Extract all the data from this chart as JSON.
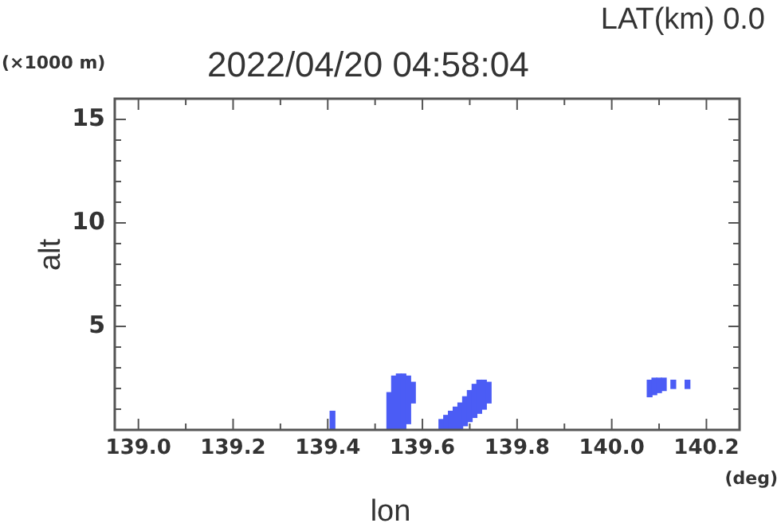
{
  "chart_data": {
    "type": "bar",
    "title": "2022/04/20 04:58:04",
    "subtitle": "LAT(km) 0.0",
    "xlabel": "lon",
    "ylabel": "alt",
    "annotations": [
      "(×1000 m)",
      "(deg)"
    ],
    "x": [
      139.41,
      139.53,
      139.54,
      139.55,
      139.56,
      139.57,
      139.58,
      139.64,
      139.65,
      139.66,
      139.67,
      139.68,
      139.69,
      139.7,
      139.71,
      139.72,
      139.73,
      139.74,
      140.08,
      140.09,
      140.1,
      140.11,
      140.13,
      140.16
    ],
    "base": [
      0,
      0,
      0,
      0,
      0,
      0.3,
      1.3,
      0,
      0,
      0,
      0,
      0,
      0.2,
      0.4,
      0.6,
      0.8,
      1.0,
      1.3,
      1.6,
      1.7,
      1.8,
      1.9,
      2.0,
      2.0
    ],
    "values": [
      0.9,
      1.8,
      2.6,
      2.7,
      2.7,
      2.3,
      1.0,
      0.5,
      0.7,
      0.9,
      1.1,
      1.3,
      1.4,
      1.5,
      1.6,
      1.6,
      1.4,
      1.0,
      0.8,
      0.8,
      0.7,
      0.6,
      0.4,
      0.4
    ],
    "color": "#4b5cf5",
    "xlim": [
      138.95,
      140.27
    ],
    "xticks": [
      {
        "value": 139.0,
        "label": "139.0"
      },
      {
        "value": 139.1,
        "label": null
      },
      {
        "value": 139.2,
        "label": "139.2"
      },
      {
        "value": 139.3,
        "label": null
      },
      {
        "value": 139.4,
        "label": "139.4"
      },
      {
        "value": 139.5,
        "label": null
      },
      {
        "value": 139.6,
        "label": "139.6"
      },
      {
        "value": 139.7,
        "label": null
      },
      {
        "value": 139.8,
        "label": "139.8"
      },
      {
        "value": 139.9,
        "label": null
      },
      {
        "value": 140.0,
        "label": "140.0"
      },
      {
        "value": 140.1,
        "label": null
      },
      {
        "value": 140.2,
        "label": "140.2"
      }
    ],
    "ylim": [
      0,
      16
    ],
    "yticks": [
      {
        "value": 1,
        "label": null
      },
      {
        "value": 2,
        "label": null
      },
      {
        "value": 3,
        "label": null
      },
      {
        "value": 4,
        "label": null
      },
      5,
      {
        "value": 6,
        "label": null
      },
      {
        "value": 7,
        "label": null
      },
      {
        "value": 8,
        "label": null
      },
      {
        "value": 9,
        "label": null
      },
      10,
      {
        "value": 11,
        "label": null
      },
      {
        "value": 12,
        "label": null
      },
      {
        "value": 13,
        "label": null
      },
      {
        "value": 14,
        "label": null
      },
      15
    ],
    "grid": false,
    "legend": false
  }
}
